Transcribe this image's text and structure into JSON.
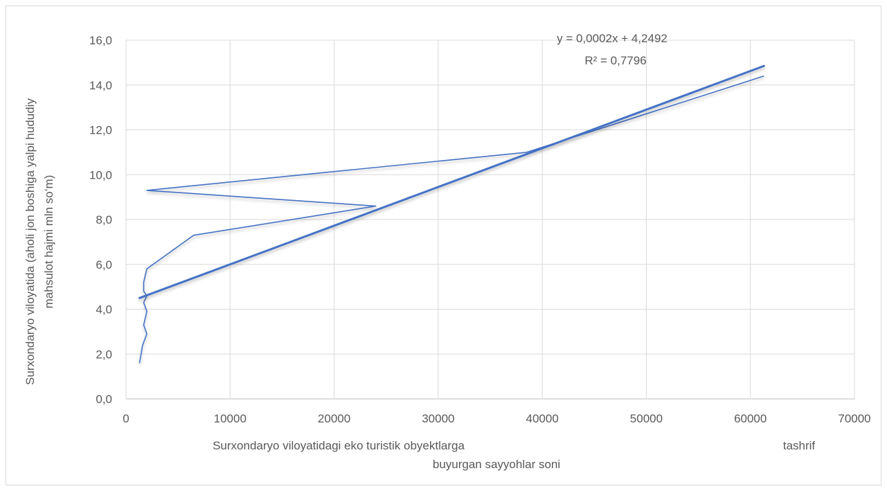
{
  "chart_data": {
    "type": "line",
    "title": "",
    "xlabel_lines": [
      "Surxondaryo viloyatidagi eko turistik obyektlarga",
      "tashrif",
      "buyurgan sayyohlar soni"
    ],
    "ylabel_lines": [
      "Surxondaryo viloyatida (aholi jon boshiga yalpi hududiy",
      "mahsulot hajmi mln so‘m)"
    ],
    "xlim": [
      0,
      70000
    ],
    "ylim": [
      0.0,
      16.0
    ],
    "x_ticks": [
      0,
      10000,
      20000,
      30000,
      40000,
      50000,
      60000,
      70000
    ],
    "x_tick_labels": [
      "0",
      "10000",
      "20000",
      "30000",
      "40000",
      "50000",
      "60000",
      "70000"
    ],
    "y_ticks": [
      0,
      2,
      4,
      6,
      8,
      10,
      12,
      14,
      16
    ],
    "y_tick_labels": [
      "0,0",
      "2,0",
      "4,0",
      "6,0",
      "8,0",
      "10,0",
      "12,0",
      "14,0",
      "16,0"
    ],
    "grid": true,
    "legend": "none",
    "series": [
      {
        "color": "#4472c4",
        "x": [
          1300,
          1600,
          2000,
          1700,
          2000,
          1700,
          2000,
          1700,
          1700,
          2000,
          6500,
          24000,
          2000,
          38500,
          61300
        ],
        "y": [
          1.6,
          2.4,
          2.9,
          3.3,
          3.9,
          4.3,
          4.6,
          4.8,
          5.2,
          5.8,
          7.3,
          8.6,
          9.3,
          11.0,
          14.4
        ]
      }
    ],
    "trendline": {
      "type": "linear",
      "color": "#4472c4",
      "x_range": [
        1300,
        61300
      ],
      "y_range": [
        4.5,
        14.85
      ],
      "equation": "y = 0,0002x + 4,2492",
      "r_squared": "R² = 0,7796"
    }
  }
}
